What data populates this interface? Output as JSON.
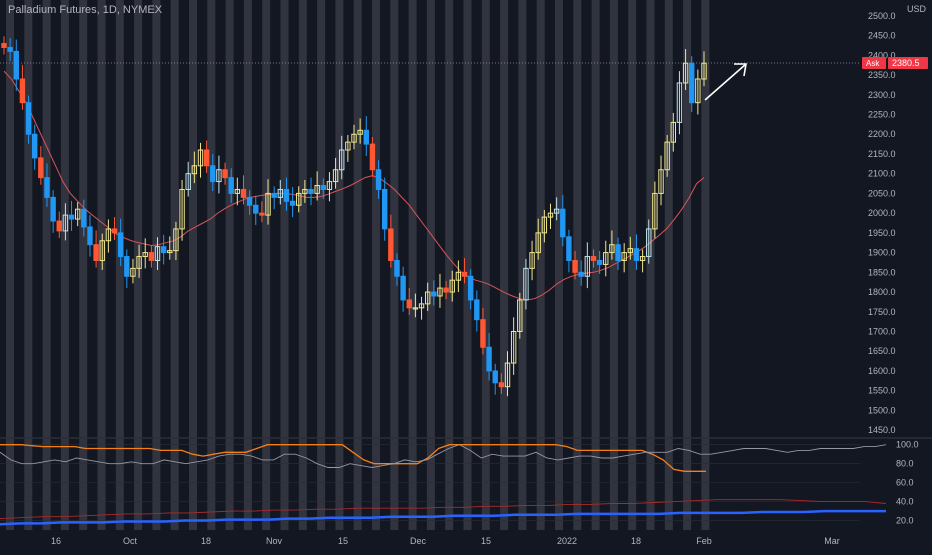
{
  "header": {
    "symbol_title": "Palladium Futures, 1D, NYMEX",
    "currency": "USD"
  },
  "ask_badge": {
    "label": "Ask",
    "value": "2380.5"
  },
  "colors": {
    "background": "#131722",
    "up_candle": "#f0e68c",
    "down_candle": "#ff5733",
    "bar_blue": "#2196f3",
    "bar_cyan": "#bfe0e8",
    "ma_line": "#d8545a",
    "shade": "#4a4d57",
    "osc_orange": "#f57f17",
    "osc_gray": "#9598a1",
    "osc_red": "#a82b2b",
    "osc_blue": "#2962ff",
    "ask_red": "#f23645"
  },
  "chart_data": [
    {
      "type": "candlestick",
      "title": "Palladium Futures, 1D, NYMEX",
      "ylim": [
        1430,
        2520
      ],
      "y_ticks": [
        "1450.0",
        "1500.0",
        "1550.0",
        "1600.0",
        "1650.0",
        "1700.0",
        "1750.0",
        "1800.0",
        "1850.0",
        "1900.0",
        "1950.0",
        "2000.0",
        "2050.0",
        "2100.0",
        "2150.0",
        "2200.0",
        "2250.0",
        "2300.0",
        "2350.0",
        "2400.0",
        "2450.0",
        "2500.0"
      ],
      "x_tick_labels": [
        "16",
        "Oct",
        "18",
        "Nov",
        "15",
        "Dec",
        "15",
        "2022",
        "18",
        "Feb",
        "Mar"
      ],
      "last_price": 2380.5,
      "ohlc_close": [
        2420,
        2410,
        2340,
        2280,
        2200,
        2140,
        2090,
        2040,
        1980,
        1955,
        1995,
        1985,
        2010,
        1965,
        1920,
        1880,
        1930,
        1960,
        1950,
        1890,
        1840,
        1860,
        1890,
        1900,
        1880,
        1915,
        1900,
        1905,
        1960,
        2060,
        2100,
        2120,
        2160,
        2120,
        2080,
        2110,
        2090,
        2050,
        2060,
        2040,
        2020,
        2000,
        1995,
        2050,
        2040,
        2060,
        2030,
        2020,
        2050,
        2060,
        2050,
        2070,
        2060,
        2080,
        2110,
        2160,
        2180,
        2200,
        2210,
        2175,
        2110,
        2060,
        1960,
        1880,
        1840,
        1780,
        1760,
        1760,
        1770,
        1800,
        1790,
        1810,
        1800,
        1830,
        1850,
        1840,
        1780,
        1730,
        1660,
        1600,
        1570,
        1560,
        1620,
        1700,
        1780,
        1860,
        1900,
        1950,
        1990,
        2000,
        2010,
        1940,
        1880,
        1850,
        1840,
        1890,
        1880,
        1870,
        1900,
        1920,
        1880,
        1900,
        1910,
        1880,
        1890,
        1960,
        2050,
        2110,
        2180,
        2230,
        2330,
        2380,
        2280,
        2340,
        2380
      ],
      "moving_average": [
        2360,
        2340,
        2310,
        2280,
        2240,
        2200,
        2160,
        2120,
        2080,
        2050,
        2030,
        2010,
        1995,
        1980,
        1965,
        1950,
        1940,
        1932,
        1926,
        1922,
        1918,
        1920,
        1925,
        1930,
        1940,
        1955,
        1965,
        1975,
        1985,
        2000,
        2012,
        2022,
        2030,
        2038,
        2042,
        2045,
        2048,
        2050,
        2050,
        2048,
        2045,
        2040,
        2040,
        2042,
        2048,
        2055,
        2062,
        2070,
        2080,
        2090,
        2095,
        2088,
        2075,
        2060,
        2040,
        2020,
        1995,
        1970,
        1945,
        1920,
        1895,
        1872,
        1852,
        1838,
        1830,
        1825,
        1818,
        1808,
        1798,
        1790,
        1783,
        1780,
        1783,
        1792,
        1805,
        1820,
        1832,
        1840,
        1845,
        1848,
        1850,
        1855,
        1862,
        1872,
        1882,
        1892,
        1902,
        1915,
        1930,
        1945,
        1962,
        1985,
        2010,
        2040,
        2075,
        2090
      ]
    },
    {
      "type": "line",
      "y_ticks": [
        "100.0",
        "80.0",
        "60.0",
        "40.0",
        "20.0"
      ],
      "ylim": [
        10,
        105
      ],
      "series": [
        {
          "values": [
            100,
            100,
            100,
            99,
            98,
            98,
            98,
            98,
            96,
            96,
            96,
            96,
            96,
            96,
            96,
            94,
            94,
            94,
            90,
            88,
            90,
            92,
            92,
            92,
            96,
            100,
            100,
            100,
            100,
            100,
            100,
            100,
            100,
            92,
            84,
            80,
            80,
            80,
            80,
            80,
            86,
            96,
            100,
            100,
            100,
            100,
            100,
            100,
            100,
            100,
            100,
            100,
            100,
            98,
            94,
            94,
            94,
            94,
            94,
            94,
            94,
            90,
            84,
            74,
            72,
            72,
            72
          ]
        },
        {
          "values": [
            92,
            84,
            80,
            80,
            82,
            84,
            82,
            86,
            84,
            82,
            80,
            80,
            82,
            80,
            80,
            84,
            82,
            80,
            82,
            84,
            88,
            90,
            90,
            88,
            84,
            84,
            90,
            90,
            86,
            80,
            76,
            76,
            80,
            78,
            76,
            78,
            80,
            84,
            82,
            84,
            90,
            96,
            100,
            94,
            86,
            90,
            88,
            88,
            88,
            92,
            86,
            84,
            86,
            88,
            88,
            86,
            86,
            88,
            90,
            92,
            92,
            92,
            96,
            94,
            90,
            90,
            92,
            94,
            96,
            96,
            96,
            94,
            92,
            94,
            94,
            96,
            96,
            96,
            96,
            98,
            98,
            100
          ]
        },
        {
          "values": [
            22,
            23,
            24,
            24,
            25,
            26,
            27,
            27,
            28,
            28,
            29,
            30,
            30,
            31,
            31,
            32,
            32,
            33,
            33,
            33,
            33,
            34,
            34,
            35,
            35,
            36,
            36,
            37,
            37,
            38,
            38,
            39,
            40,
            41,
            42,
            42,
            42,
            42,
            41,
            40,
            40,
            40,
            38
          ]
        },
        {
          "values": [
            16,
            17,
            17,
            18,
            18,
            18,
            19,
            19,
            19,
            20,
            20,
            21,
            21,
            21,
            22,
            22,
            23,
            23,
            23,
            24,
            24,
            24,
            25,
            25,
            25,
            26,
            26,
            26,
            27,
            27,
            27,
            27,
            27,
            28,
            28,
            28,
            28,
            29,
            29,
            29,
            30,
            30,
            30,
            30
          ]
        }
      ]
    }
  ]
}
